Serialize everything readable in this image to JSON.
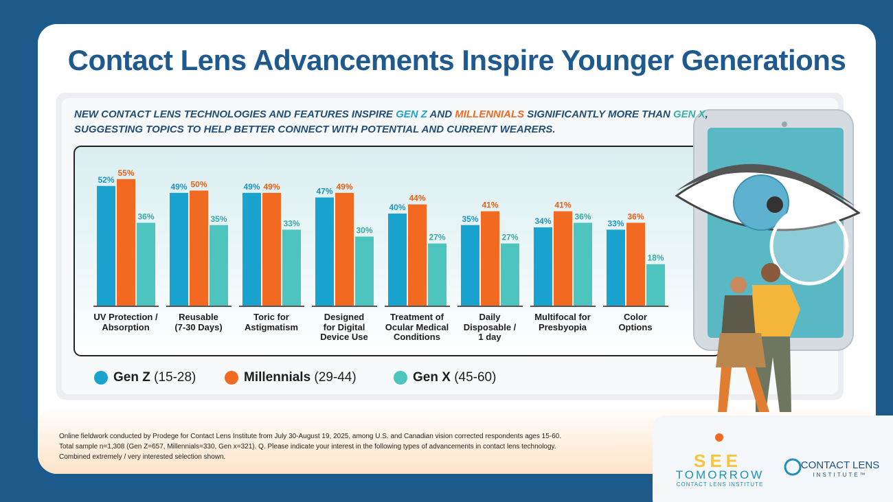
{
  "title": "Contact Lens Advancements Inspire Younger Generations",
  "subtitle_lines": [
    [
      {
        "text": "NEW CONTACT LENS TECHNOLOGIES AND FEATURES INSPIRE ",
        "color": "#1f4e79"
      },
      {
        "text": "GEN Z",
        "color": "#1ba3cf"
      },
      {
        "text": " AND ",
        "color": "#1f4e79"
      },
      {
        "text": "MILLENNIALS",
        "color": "#f26a21"
      },
      {
        "text": " SIGNIFICANTLY MORE THAN ",
        "color": "#1f4e79"
      },
      {
        "text": "GEN X",
        "color": "#36b3a8"
      },
      {
        "text": ",",
        "color": "#1f4e79"
      }
    ],
    [
      {
        "text": "SUGGESTING TOPICS TO HELP BETTER CONNECT WITH POTENTIAL AND CURRENT WEARERS.",
        "color": "#1f4e79"
      }
    ]
  ],
  "chart_data": {
    "type": "bar",
    "categories": [
      "UV Protection /\nAbsorption",
      "Reusable\n(7-30 Days)",
      "Toric for\nAstigmatism",
      "Designed\nfor Digital\nDevice Use",
      "Treatment of\nOcular Medical\nConditions",
      "Daily\nDisposable /\n1 day",
      "Multifocal for\nPresbyopia",
      "Color\nOptions"
    ],
    "series": [
      {
        "name": "Gen Z",
        "age_range": "(15-28)",
        "color": "#1ba3cf",
        "label_color": "#1a96c4",
        "values": [
          52,
          49,
          49,
          47,
          40,
          35,
          34,
          33
        ],
        "value_labels": [
          "52%",
          "49%",
          "49%",
          "47%",
          "40%",
          "35%",
          "34%",
          "33%"
        ]
      },
      {
        "name": "Millennials",
        "age_range": "(29-44)",
        "color": "#f26a21",
        "label_color": "#e5601a",
        "values": [
          55,
          50,
          49,
          49,
          44,
          41,
          41,
          36
        ],
        "value_labels": [
          "55%",
          "50%",
          "49%",
          "49%",
          "44%",
          "41%",
          "41%",
          "36%"
        ]
      },
      {
        "name": "Gen X",
        "age_range": "(45-60)",
        "color": "#4ec4bf",
        "label_color": "#35aaa5",
        "values": [
          36,
          35,
          33,
          30,
          27,
          27,
          36,
          18
        ],
        "value_labels": [
          "36%",
          "35%",
          "33%",
          "30%",
          "27%",
          "27%",
          "36%",
          "18%"
        ]
      }
    ]
  },
  "footnote": [
    "Online fieldwork conducted by Prodege for Contact Lens Institute from July 30-August 19, 2025, among U.S. and Canadian vision corrected respondents ages 15-60.",
    "Total sample n=1,308 (Gen Z=657, Millennials=330, Gen x=321). Q. Please indicate your interest in the following types of advancements in contact lens technology.",
    "Combined extremely / very interested selection shown."
  ],
  "logo_see": "SEE",
  "logo_tomorrow": "TOMORROW",
  "logo_see_sub": "CONTACT LENS INSTITUTE",
  "logo_cli_main": "CONTACT LENS",
  "logo_cli_sub": "INSTITUTE™"
}
